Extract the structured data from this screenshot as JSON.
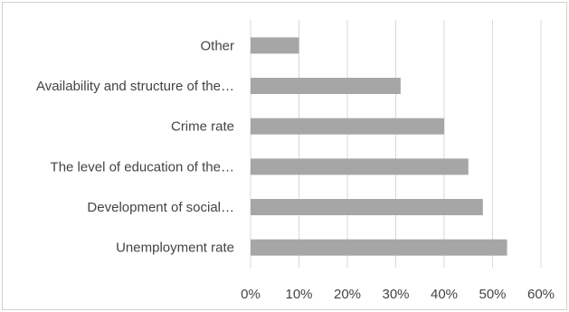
{
  "chart_data": {
    "type": "bar",
    "orientation": "horizontal",
    "categories": [
      "Unemployment rate",
      "Development of social…",
      "The level of education of the…",
      "Crime rate",
      "Availability and structure of the…",
      "Other"
    ],
    "values": [
      53,
      48,
      45,
      40,
      31,
      10
    ],
    "value_unit": "%",
    "xlim": [
      0,
      60
    ],
    "x_ticks": [
      "0%",
      "10%",
      "20%",
      "30%",
      "40%",
      "50%",
      "60%"
    ],
    "grid": true,
    "legend": "none",
    "colors": {
      "bar": "#a6a6a6",
      "grid": "#d9d9d9",
      "text": "#444444"
    }
  }
}
